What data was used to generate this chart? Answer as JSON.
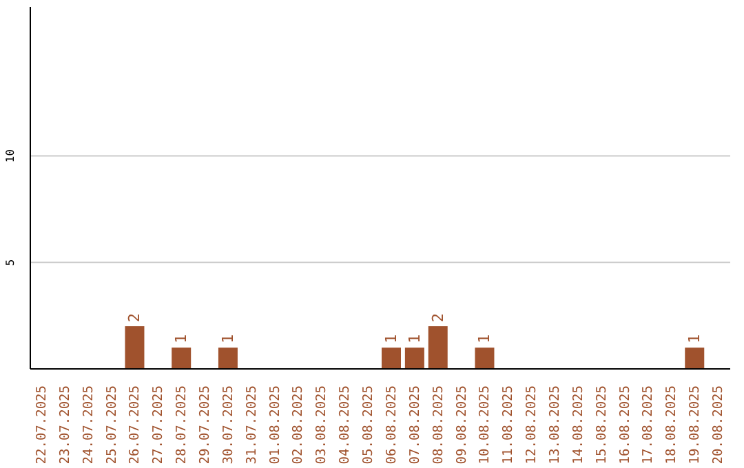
{
  "chart_data": {
    "type": "bar",
    "categories": [
      "22.07.2025",
      "23.07.2025",
      "24.07.2025",
      "25.07.2025",
      "26.07.2025",
      "27.07.2025",
      "28.07.2025",
      "29.07.2025",
      "30.07.2025",
      "31.07.2025",
      "01.08.2025",
      "02.08.2025",
      "03.08.2025",
      "04.08.2025",
      "05.08.2025",
      "06.08.2025",
      "07.08.2025",
      "08.08.2025",
      "09.08.2025",
      "10.08.2025",
      "11.08.2025",
      "12.08.2025",
      "13.08.2025",
      "14.08.2025",
      "15.08.2025",
      "16.08.2025",
      "17.08.2025",
      "18.08.2025",
      "19.08.2025",
      "20.08.2025"
    ],
    "values": [
      0,
      0,
      0,
      0,
      2,
      0,
      1,
      0,
      1,
      0,
      0,
      0,
      0,
      0,
      0,
      1,
      1,
      2,
      0,
      1,
      0,
      0,
      0,
      0,
      0,
      0,
      0,
      0,
      1,
      0
    ],
    "value_labels": [
      null,
      null,
      null,
      null,
      "2",
      null,
      "1",
      null,
      "1",
      null,
      null,
      null,
      null,
      null,
      null,
      "1",
      "1",
      "2",
      null,
      "1",
      null,
      null,
      null,
      null,
      null,
      null,
      null,
      null,
      "1",
      null
    ],
    "color": "#a0522d",
    "ylim": [
      0,
      17
    ],
    "yticks": [
      5,
      10
    ],
    "grid": "y"
  }
}
